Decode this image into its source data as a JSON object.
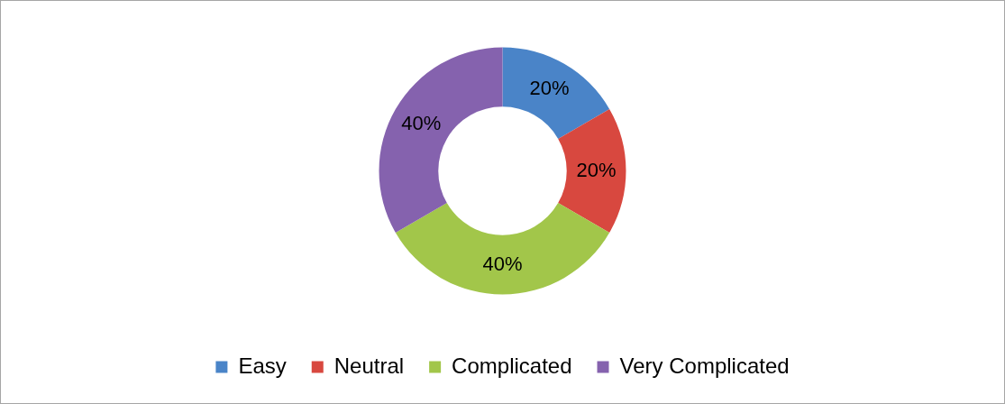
{
  "chart_data": {
    "type": "donut",
    "categories": [
      "Easy",
      "Neutral",
      "Complicated",
      "Very Complicated"
    ],
    "values": [
      20,
      20,
      40,
      40
    ],
    "colors": [
      "#4a84c8",
      "#d8483f",
      "#a2c64a",
      "#8562ae"
    ],
    "value_labels": [
      "20%",
      "20%",
      "40%",
      "40%"
    ],
    "legend": "bottom"
  }
}
